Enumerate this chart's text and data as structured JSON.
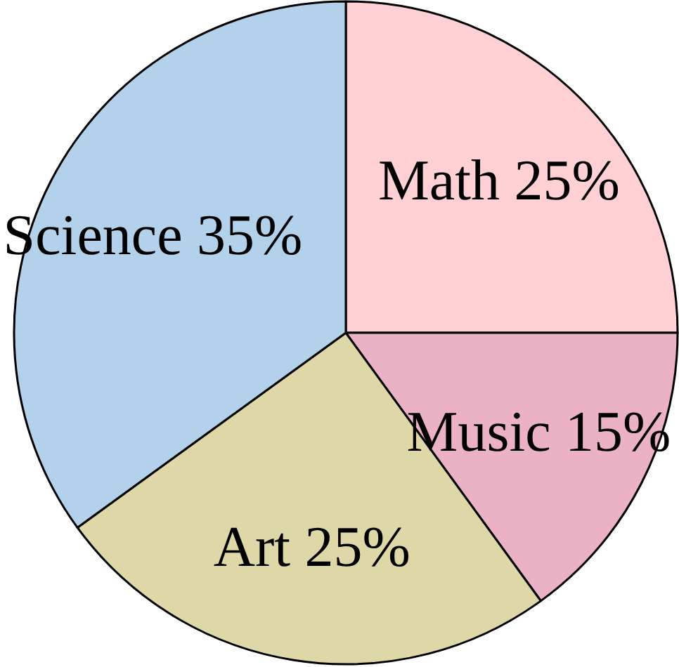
{
  "chart_data": {
    "type": "pie",
    "categories": [
      "Math",
      "Music",
      "Art",
      "Science"
    ],
    "values": [
      25,
      15,
      25,
      35
    ],
    "value_labels": [
      "25%",
      "15%",
      "25%",
      "35%"
    ],
    "colors": [
      "#ffd1d4",
      "#ebb2c6",
      "#ded8a8",
      "#b4d1eb"
    ]
  }
}
